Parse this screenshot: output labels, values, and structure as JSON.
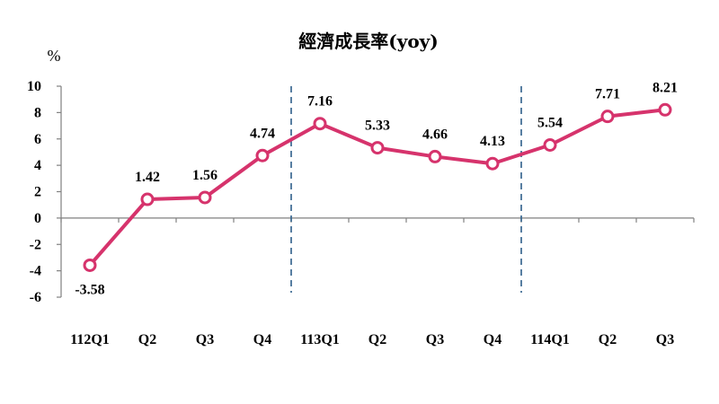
{
  "chart_data": {
    "type": "line",
    "title": "經濟成長率(yoy)",
    "ylabel": "%",
    "xlabel": "",
    "categories": [
      "112Q1",
      "Q2",
      "Q3",
      "Q4",
      "113Q1",
      "Q2",
      "Q3",
      "Q4",
      "114Q1",
      "Q2",
      "Q3"
    ],
    "series": [
      {
        "values": [
          -3.58,
          1.42,
          1.56,
          4.74,
          7.16,
          5.33,
          4.66,
          4.13,
          5.54,
          7.71,
          8.21
        ]
      }
    ],
    "data_labels": [
      "-3.58",
      "1.42",
      "1.56",
      "4.74",
      "7.16",
      "5.33",
      "4.66",
      "4.13",
      "5.54",
      "7.71",
      "8.21"
    ],
    "ylim": [
      -6,
      10
    ],
    "yticks": [
      "10",
      "8",
      "6",
      "4",
      "2",
      "0",
      "-2",
      "-4",
      "-6"
    ],
    "year_separators_after_index": [
      3,
      7
    ],
    "grid": false,
    "line_color": "#d6336c",
    "marker_fill": "#ffffff",
    "separator_color": "#2e5f8a"
  }
}
